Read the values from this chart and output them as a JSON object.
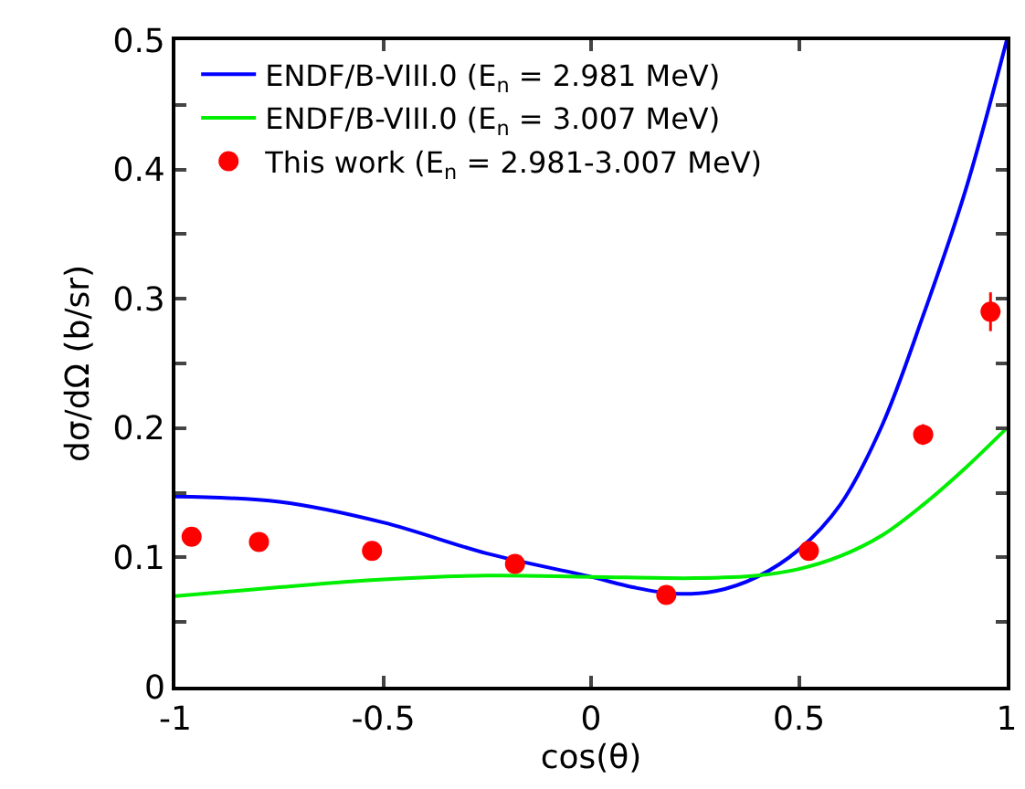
{
  "chart_data": {
    "type": "line",
    "xlabel": "cos(θ)",
    "ylabel": "dσ/dΩ (b/sr)",
    "xlim": [
      -1,
      1
    ],
    "xticks": [
      -1,
      -0.5,
      0,
      0.5,
      1
    ],
    "ylim": [
      0,
      0.5
    ],
    "yticks": [
      0,
      {
        "value": 0.05,
        "label": null
      },
      0.1,
      {
        "value": 0.15,
        "label": null
      },
      0.2,
      {
        "value": 0.25,
        "label": null
      },
      0.3,
      {
        "value": 0.35,
        "label": null
      },
      0.4,
      {
        "value": 0.45,
        "label": null
      },
      0.5
    ],
    "legend": "top",
    "line_style": "solid",
    "series": [
      {
        "name": "ENDF/B-VIII.0 (E$_{n}$ = 2.981 MeV)",
        "color": "#0000ff",
        "marker": "none",
        "x": [
          -1,
          -0.75,
          -0.5,
          -0.25,
          0,
          0.1,
          0.2,
          0.3,
          0.4,
          0.5,
          0.6,
          0.7,
          0.8,
          0.9,
          1
        ],
        "values": [
          0.147,
          0.143,
          0.127,
          0.103,
          0.085,
          0.077,
          0.072,
          0.074,
          0.085,
          0.106,
          0.141,
          0.202,
          0.288,
          0.383,
          0.5
        ]
      },
      {
        "name": "ENDF/B-VIII.0 (E$_{n}$ = 3.007 MeV)",
        "color": "#00ee00",
        "marker": "none",
        "x": [
          -1,
          -0.75,
          -0.5,
          -0.25,
          0,
          0.25,
          0.4,
          0.5,
          0.6,
          0.7,
          0.8,
          0.9,
          1
        ],
        "values": [
          0.07,
          0.077,
          0.083,
          0.086,
          0.085,
          0.084,
          0.086,
          0.091,
          0.101,
          0.117,
          0.141,
          0.169,
          0.2
        ]
      },
      {
        "name": "This work (E$_{n}$ = 2.981-3.007 MeV)",
        "color": "#ff0000",
        "type": "scatter",
        "marker": "circle",
        "x": [
          -0.961,
          -0.799,
          -0.527,
          -0.183,
          0.181,
          0.524,
          0.799,
          0.961
        ],
        "values": [
          0.116,
          0.112,
          0.105,
          0.095,
          0.071,
          0.105,
          0.195,
          0.29
        ],
        "errors": [
          null,
          null,
          null,
          null,
          null,
          null,
          0.008,
          0.015
        ]
      }
    ]
  }
}
